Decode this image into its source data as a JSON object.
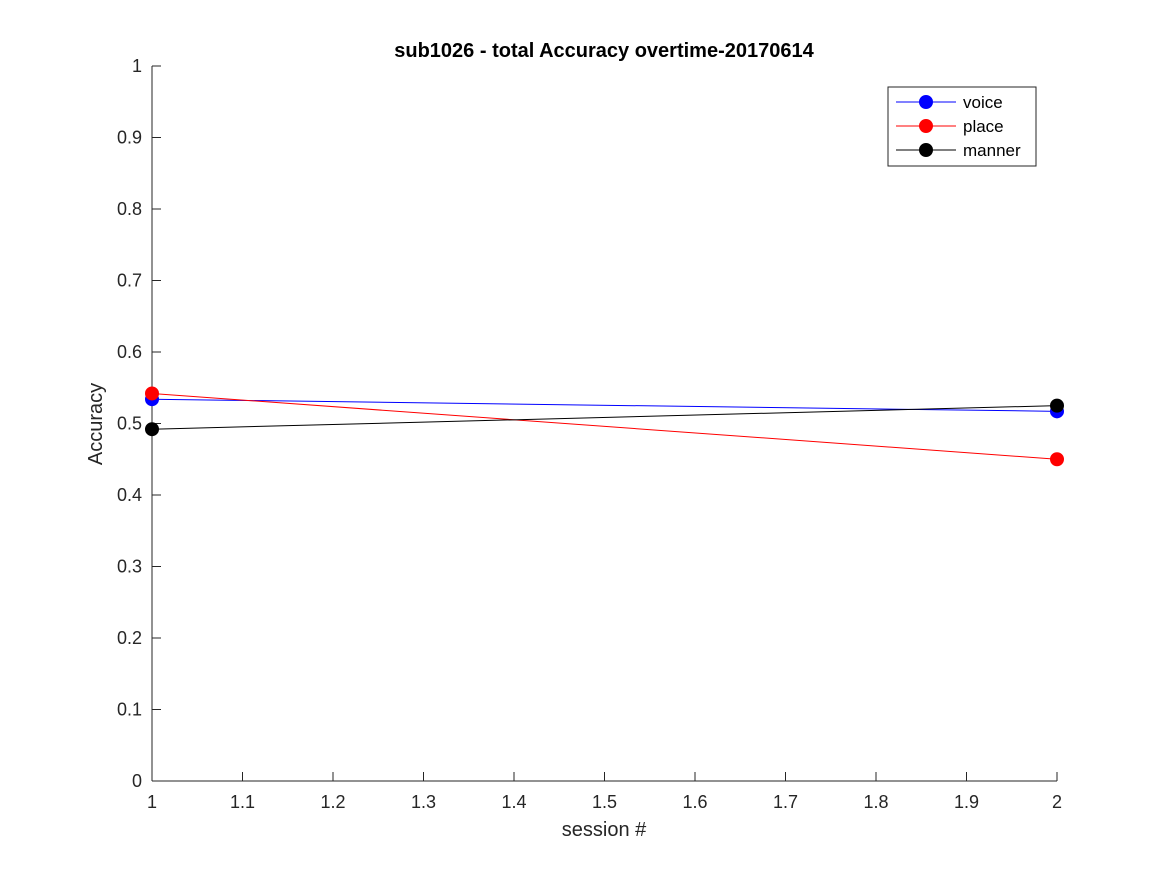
{
  "chart_data": {
    "type": "line",
    "title": "sub1026 - total Accuracy overtime-20170614",
    "xlabel": "session #",
    "ylabel": "Accuracy",
    "xlim": [
      1,
      2
    ],
    "ylim": [
      0,
      1
    ],
    "x_ticks": [
      "1",
      "1.1",
      "1.2",
      "1.3",
      "1.4",
      "1.5",
      "1.6",
      "1.7",
      "1.8",
      "1.9",
      "2"
    ],
    "y_ticks": [
      "0",
      "0.1",
      "0.2",
      "0.3",
      "0.4",
      "0.5",
      "0.6",
      "0.7",
      "0.8",
      "0.9",
      "1"
    ],
    "grid": false,
    "legend_position": "top-right",
    "x": [
      1,
      2
    ],
    "series": [
      {
        "name": "voice",
        "color": "#0000ff",
        "values": [
          0.534,
          0.517
        ]
      },
      {
        "name": "place",
        "color": "#ff0000",
        "values": [
          0.542,
          0.45
        ]
      },
      {
        "name": "manner",
        "color": "#000000",
        "values": [
          0.492,
          0.525
        ]
      }
    ]
  }
}
